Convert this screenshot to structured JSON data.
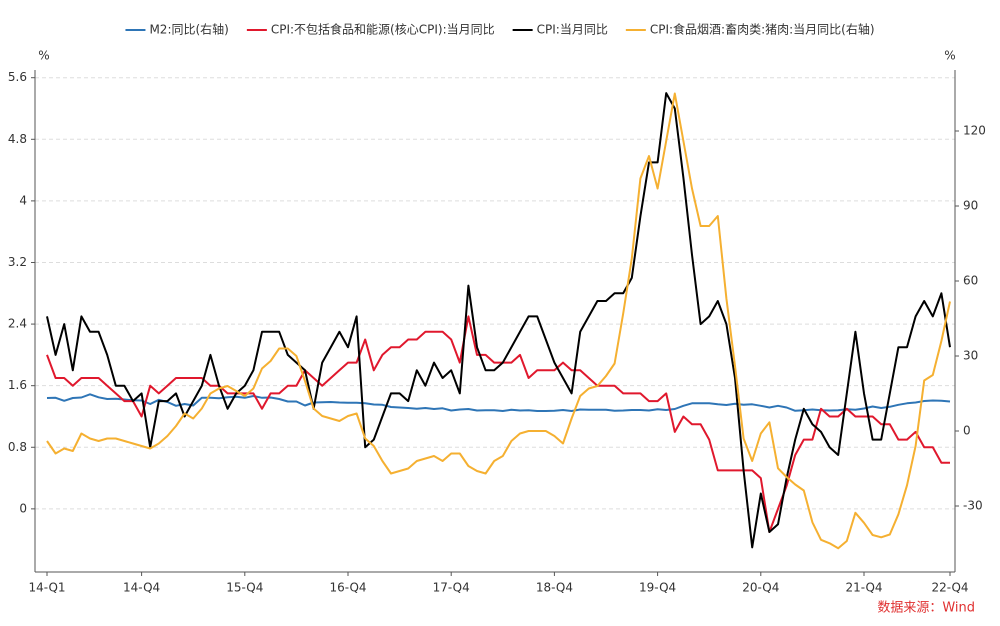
{
  "chart_data": {
    "type": "line",
    "y_unit": "%",
    "y2_unit": "%",
    "source": "数据来源：Wind",
    "categories": [
      "14-Q1",
      null,
      null,
      null,
      null,
      null,
      null,
      null,
      null,
      null,
      null,
      "14-Q4",
      null,
      null,
      null,
      null,
      null,
      null,
      null,
      null,
      null,
      null,
      null,
      "15-Q4",
      null,
      null,
      null,
      null,
      null,
      null,
      null,
      null,
      null,
      null,
      null,
      "16-Q4",
      null,
      null,
      null,
      null,
      null,
      null,
      null,
      null,
      null,
      null,
      null,
      "17-Q4",
      null,
      null,
      null,
      null,
      null,
      null,
      null,
      null,
      null,
      null,
      null,
      "18-Q4",
      null,
      null,
      null,
      null,
      null,
      null,
      null,
      null,
      null,
      null,
      null,
      "19-Q4",
      null,
      null,
      null,
      null,
      null,
      null,
      null,
      null,
      null,
      null,
      null,
      "20-Q4",
      null,
      null,
      null,
      null,
      null,
      null,
      null,
      null,
      null,
      null,
      null,
      "21-Q4",
      null,
      null,
      null,
      null,
      null,
      null,
      null,
      null,
      null,
      "22-Q4"
    ],
    "series": [
      {
        "name": "M2:同比(右轴)",
        "color": "#2e75b6",
        "axis": "y2",
        "values": [
          13.2,
          13.3,
          12.1,
          13.2,
          13.4,
          14.7,
          13.5,
          12.8,
          12.9,
          12.6,
          12.3,
          12.2,
          10.8,
          12.5,
          11.6,
          10.1,
          10.8,
          10.2,
          13.3,
          13.3,
          13.1,
          13.5,
          13.7,
          13.3,
          14.0,
          13.3,
          13.4,
          12.8,
          11.8,
          11.8,
          10.2,
          11.4,
          11.5,
          11.6,
          11.4,
          11.3,
          11.3,
          11.1,
          10.6,
          10.5,
          9.6,
          9.4,
          9.2,
          8.9,
          9.2,
          8.8,
          9.1,
          8.2,
          8.6,
          8.8,
          8.2,
          8.3,
          8.3,
          8.0,
          8.5,
          8.2,
          8.3,
          8.0,
          8.0,
          8.1,
          8.4,
          8.0,
          8.6,
          8.5,
          8.5,
          8.5,
          8.1,
          8.2,
          8.4,
          8.4,
          8.2,
          8.7,
          8.4,
          8.8,
          10.1,
          11.1,
          11.1,
          11.1,
          10.7,
          10.4,
          10.9,
          10.5,
          10.7,
          10.1,
          9.4,
          10.1,
          9.4,
          8.1,
          8.3,
          8.6,
          8.3,
          8.2,
          8.3,
          8.7,
          8.5,
          9.0,
          9.8,
          9.2,
          9.7,
          10.5,
          11.1,
          11.4,
          12.0,
          12.2,
          12.1,
          11.8
        ]
      },
      {
        "name": "CPI:不包括食品和能源(核心CPI):当月同比",
        "color": "#e0182d",
        "values": [
          2.0,
          1.7,
          1.7,
          1.6,
          1.7,
          1.7,
          1.7,
          1.6,
          1.5,
          1.4,
          1.4,
          1.2,
          1.6,
          1.5,
          1.6,
          1.7,
          1.7,
          1.7,
          1.7,
          1.6,
          1.6,
          1.5,
          1.5,
          1.5,
          1.5,
          1.3,
          1.5,
          1.5,
          1.6,
          1.6,
          1.8,
          1.7,
          1.6,
          1.7,
          1.8,
          1.9,
          1.9,
          2.2,
          1.8,
          2.0,
          2.1,
          2.1,
          2.2,
          2.2,
          2.3,
          2.3,
          2.3,
          2.2,
          1.9,
          2.5,
          2.0,
          2.0,
          1.9,
          1.9,
          1.9,
          2.0,
          1.7,
          1.8,
          1.8,
          1.8,
          1.9,
          1.8,
          1.8,
          1.7,
          1.6,
          1.6,
          1.6,
          1.5,
          1.5,
          1.5,
          1.4,
          1.4,
          1.5,
          1.0,
          1.2,
          1.1,
          1.1,
          0.9,
          0.5,
          0.5,
          0.5,
          0.5,
          0.5,
          0.4,
          -0.3,
          0.0,
          0.3,
          0.7,
          0.9,
          0.9,
          1.3,
          1.2,
          1.2,
          1.3,
          1.2,
          1.2,
          1.2,
          1.1,
          1.1,
          0.9,
          0.9,
          1.0,
          0.8,
          0.8,
          0.6,
          0.6
        ]
      },
      {
        "name": "CPI:当月同比",
        "color": "#000000",
        "values": [
          2.5,
          2.0,
          2.4,
          1.8,
          2.5,
          2.3,
          2.3,
          2.0,
          1.6,
          1.6,
          1.4,
          1.5,
          0.8,
          1.4,
          1.4,
          1.5,
          1.2,
          1.4,
          1.6,
          2.0,
          1.6,
          1.3,
          1.5,
          1.6,
          1.8,
          2.3,
          2.3,
          2.3,
          2.0,
          1.9,
          1.8,
          1.3,
          1.9,
          2.1,
          2.3,
          2.1,
          2.5,
          0.8,
          0.9,
          1.2,
          1.5,
          1.5,
          1.4,
          1.8,
          1.6,
          1.9,
          1.7,
          1.8,
          1.5,
          2.9,
          2.1,
          1.8,
          1.8,
          1.9,
          2.1,
          2.3,
          2.5,
          2.5,
          2.2,
          1.9,
          1.7,
          1.5,
          2.3,
          2.5,
          2.7,
          2.7,
          2.8,
          2.8,
          3.0,
          3.8,
          4.5,
          4.5,
          5.4,
          5.2,
          4.3,
          3.3,
          2.4,
          2.5,
          2.7,
          2.4,
          1.7,
          0.5,
          -0.5,
          0.2,
          -0.3,
          -0.2,
          0.4,
          0.9,
          1.3,
          1.1,
          1.0,
          0.8,
          0.7,
          1.5,
          2.3,
          1.5,
          0.9,
          0.9,
          1.5,
          2.1,
          2.1,
          2.5,
          2.7,
          2.5,
          2.8,
          2.1
        ]
      },
      {
        "name": "CPI:食品烟酒:畜肉类:猪肉:当月同比(右轴)",
        "color": "#f5b031",
        "axis": "y2",
        "values": [
          -4,
          -9,
          -7,
          -8,
          -1,
          -3,
          -4,
          -3,
          -3,
          -4,
          -5,
          -6,
          -7,
          -5,
          -2,
          2,
          7,
          5,
          9,
          15,
          17,
          18,
          16,
          14,
          17,
          25,
          28,
          33,
          33,
          30,
          20,
          9,
          6,
          5,
          4,
          6,
          7,
          -3,
          -6,
          -12,
          -17,
          -16,
          -15,
          -12,
          -11,
          -10,
          -12,
          -9,
          -9,
          -14,
          -16,
          -17,
          -12,
          -10,
          -4,
          -1,
          0,
          0,
          0,
          -2,
          -5,
          5,
          14,
          17,
          18,
          22,
          27,
          47,
          69,
          101,
          110,
          97,
          116,
          135,
          116,
          97,
          82,
          82,
          86,
          53,
          26,
          -3,
          -12,
          -1,
          3.5,
          -14.9,
          -18.4,
          -21.4,
          -23.8,
          -36.5,
          -43.5,
          -44.9,
          -46.9,
          -44.0,
          -32.7,
          -36.7,
          -41.6,
          -42.5,
          -41.4,
          -33.3,
          -21.7,
          -6.0,
          20.2,
          22.4,
          36.0,
          51.8
        ]
      }
    ],
    "ylim": [
      -0.82,
      5.7
    ],
    "yticks": [
      0,
      0.8,
      1.6,
      2.4,
      3.2,
      4,
      4.8,
      5.6
    ],
    "y2lim": [
      -56.4,
      144.4
    ],
    "y2ticks": [
      -30,
      0,
      30,
      60,
      90,
      120
    ],
    "grid": true,
    "legend": "top"
  }
}
